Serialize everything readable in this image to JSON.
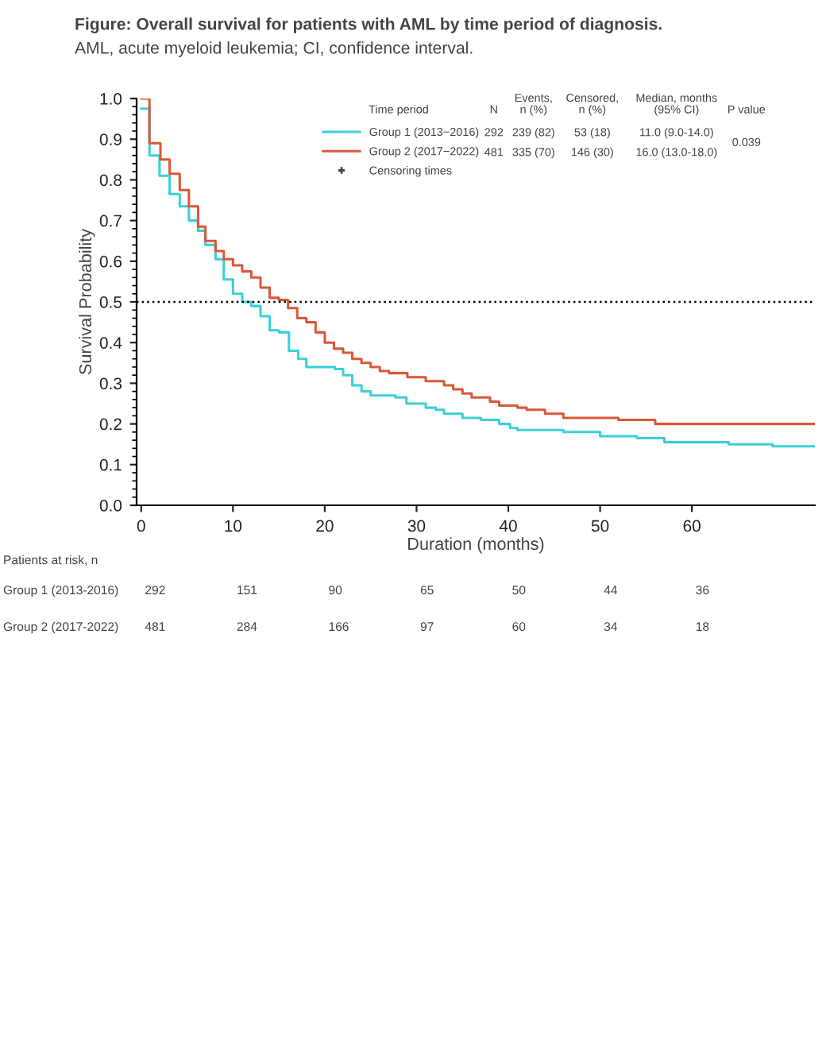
{
  "chart_data": {
    "type": "step",
    "title": "Figure: Overall survival for patients with AML by time period of diagnosis.",
    "subtitle": "AML, acute myeloid leukemia; CI, confidence interval.",
    "xlabel": "Duration (months)",
    "ylabel": "Survival Probability",
    "xlim": [
      -0.5,
      73.4
    ],
    "xticks": [
      0,
      10,
      20,
      30,
      40,
      50,
      60
    ],
    "ylim": [
      0,
      1.0
    ],
    "yticks": [
      {
        "value": 0,
        "label": "0.0"
      },
      0.1,
      0.2,
      0.3,
      0.4,
      0.5,
      0.6,
      0.7,
      0.8,
      0.9,
      {
        "value": 1.0,
        "label": "1.0"
      }
    ],
    "grid": false,
    "legend": "top",
    "series": [
      {
        "name": "Group 1 (2013−2016)",
        "color": "#3ccfd8",
        "x": [
          0,
          0.9,
          2.0,
          3.1,
          4.2,
          5.2,
          6.2,
          7.0,
          8.1,
          9.0,
          10,
          11,
          12,
          13,
          14,
          15,
          16.1,
          17.1,
          18,
          21.1,
          22,
          23,
          24,
          25,
          27.7,
          28.9,
          31,
          32.1,
          33,
          35,
          37,
          39,
          40.2,
          41,
          46,
          50,
          54,
          57,
          64,
          68.8,
          73.4
        ],
        "values": [
          0.975,
          0.86,
          0.81,
          0.765,
          0.735,
          0.7,
          0.675,
          0.64,
          0.605,
          0.555,
          0.52,
          0.5,
          0.49,
          0.465,
          0.43,
          0.425,
          0.38,
          0.36,
          0.34,
          0.335,
          0.32,
          0.295,
          0.28,
          0.27,
          0.265,
          0.25,
          0.24,
          0.235,
          0.225,
          0.215,
          0.21,
          0.2,
          0.19,
          0.185,
          0.18,
          0.17,
          0.165,
          0.155,
          0.15,
          0.145,
          0.145
        ]
      },
      {
        "name": "Group 2 (2017−2022)",
        "color": "#d9583a",
        "x": [
          0,
          0.9,
          2.1,
          3.1,
          4.2,
          5.2,
          6.2,
          7.0,
          8.1,
          9.0,
          10,
          11,
          12,
          13,
          14,
          15,
          16,
          17,
          18,
          19,
          20,
          21,
          22,
          23,
          24,
          25,
          26,
          27,
          29,
          31,
          33,
          34,
          35,
          36,
          38,
          39,
          41,
          42,
          44,
          46,
          52,
          56,
          73.4
        ],
        "values": [
          1.0,
          0.89,
          0.85,
          0.815,
          0.775,
          0.735,
          0.685,
          0.65,
          0.625,
          0.605,
          0.59,
          0.575,
          0.56,
          0.535,
          0.51,
          0.505,
          0.485,
          0.46,
          0.45,
          0.425,
          0.4,
          0.385,
          0.375,
          0.36,
          0.35,
          0.34,
          0.33,
          0.325,
          0.315,
          0.305,
          0.295,
          0.285,
          0.275,
          0.265,
          0.255,
          0.245,
          0.24,
          0.235,
          0.225,
          0.215,
          0.21,
          0.2,
          0.2
        ]
      }
    ],
    "ref_lines": [
      {
        "axis": "y",
        "value": 0.5,
        "color": "#000000",
        "line_style": "dotted"
      }
    ],
    "annotations": [
      "Time period",
      "N",
      "Events,\nn (%)",
      "Censored,\nn (%)",
      "Median, months\n(95% CI)",
      "P value",
      "292",
      "239 (82)",
      "53 (18)",
      "11.0 (9.0-14.0)",
      "481",
      "335 (70)",
      "146 (30)",
      "16.0 (13.0-18.0)",
      "0.039",
      "Censoring times",
      "Patients at risk, n",
      "Group 1 (2013-2016)",
      "292",
      "151",
      "90",
      "65",
      "50",
      "44",
      "36",
      "Group 2 (2017-2022)",
      "481",
      "284",
      "166",
      "97",
      "60",
      "34",
      "18"
    ]
  }
}
